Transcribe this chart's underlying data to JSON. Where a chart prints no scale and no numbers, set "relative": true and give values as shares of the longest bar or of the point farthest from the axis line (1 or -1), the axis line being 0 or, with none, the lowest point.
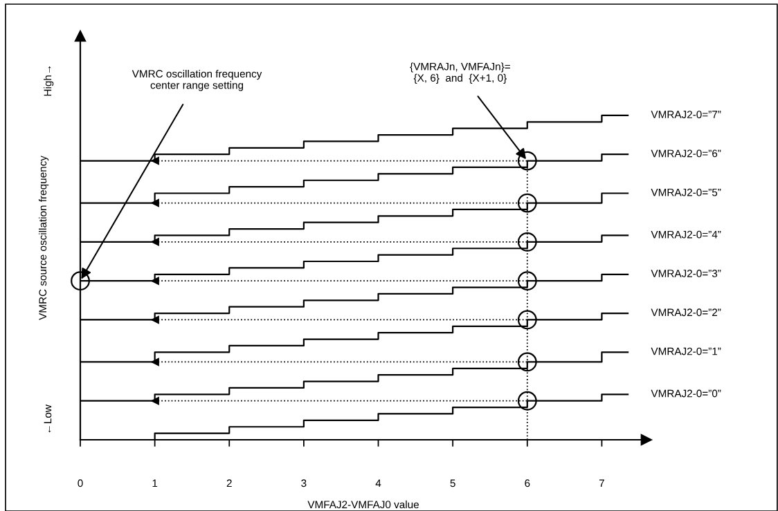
{
  "chart_data": {
    "type": "step",
    "relative": true,
    "xlabel": "VMFAJ2-VMFAJ0 value",
    "ylabel": "VMRC source oscillation frequency",
    "tick_labels": "x",
    "xlim": [
      0,
      7.6
    ],
    "xticks": [
      0,
      1,
      2,
      3,
      4,
      5,
      6,
      7
    ],
    "annotations": [
      "High→",
      "←Low",
      {
        "text": "VMRC oscillation frequency\ncenter range setting",
        "x": 0,
        "y": 0.49
      },
      {
        "text": "{VMRAJn, VMFAJn}=\n{X, 6}  and  {X+1, 0}",
        "x": 6,
        "y": 0.86
      }
    ],
    "series": [
      {
        "name": "VMRAJ2-0=”0”",
        "color": "#000000",
        "x": [
          0,
          1,
          2,
          3,
          4,
          5,
          6,
          7,
          7.35
        ],
        "values": [
          0,
          0.02,
          0.04,
          0.06,
          0.08,
          0.1,
          0.12,
          0.14,
          0.14
        ]
      },
      {
        "name": "VMRAJ2-0=”1”",
        "color": "#000000",
        "x": [
          0,
          1,
          2,
          3,
          4,
          5,
          6,
          7,
          7.35
        ],
        "values": [
          0.12,
          0.14,
          0.16,
          0.18,
          0.2,
          0.22,
          0.24,
          0.27,
          0.27
        ]
      },
      {
        "name": "VMRAJ2-0=”2”",
        "color": "#000000",
        "x": [
          0,
          1,
          2,
          3,
          4,
          5,
          6,
          7,
          7.35
        ],
        "values": [
          0.24,
          0.27,
          0.29,
          0.31,
          0.33,
          0.35,
          0.37,
          0.39,
          0.39
        ]
      },
      {
        "name": "VMRAJ2-0=”3”",
        "color": "#000000",
        "x": [
          0,
          1,
          2,
          3,
          4,
          5,
          6,
          7,
          7.35
        ],
        "values": [
          0.37,
          0.39,
          0.41,
          0.43,
          0.45,
          0.47,
          0.49,
          0.51,
          0.51
        ]
      },
      {
        "name": "VMRAJ2-0=”4”",
        "color": "#000000",
        "x": [
          0,
          1,
          2,
          3,
          4,
          5,
          6,
          7,
          7.35
        ],
        "values": [
          0.49,
          0.51,
          0.53,
          0.55,
          0.57,
          0.59,
          0.61,
          0.63,
          0.63
        ]
      },
      {
        "name": "VMRAJ2-0=”5”",
        "color": "#000000",
        "x": [
          0,
          1,
          2,
          3,
          4,
          5,
          6,
          7,
          7.35
        ],
        "values": [
          0.61,
          0.63,
          0.65,
          0.67,
          0.69,
          0.71,
          0.73,
          0.76,
          0.76
        ]
      },
      {
        "name": "VMRAJ2-0=”6”",
        "color": "#000000",
        "x": [
          0,
          1,
          2,
          3,
          4,
          5,
          6,
          7,
          7.35
        ],
        "values": [
          0.73,
          0.76,
          0.78,
          0.8,
          0.82,
          0.84,
          0.86,
          0.88,
          0.88
        ]
      },
      {
        "name": "VMRAJ2-0=”7”",
        "color": "#000000",
        "x": [
          0,
          1,
          2,
          3,
          4,
          5,
          6,
          7,
          7.35
        ],
        "values": [
          0.86,
          0.88,
          0.9,
          0.92,
          0.94,
          0.96,
          0.98,
          1,
          1
        ]
      },
      {
        "type": "line",
        "color": "#000000",
        "line_style": "dotted",
        "marker": "triangle",
        "x": [
          1,
          6
        ],
        "values": [
          0.12,
          0.12
        ]
      },
      {
        "type": "line",
        "color": "#000000",
        "line_style": "dotted",
        "marker": "triangle",
        "x": [
          1,
          6
        ],
        "values": [
          0.24,
          0.24
        ]
      },
      {
        "type": "line",
        "color": "#000000",
        "line_style": "dotted",
        "marker": "triangle",
        "x": [
          1,
          6
        ],
        "values": [
          0.37,
          0.37
        ]
      },
      {
        "type": "line",
        "color": "#000000",
        "line_style": "dotted",
        "marker": "triangle",
        "x": [
          1,
          6
        ],
        "values": [
          0.49,
          0.49
        ]
      },
      {
        "type": "line",
        "color": "#000000",
        "line_style": "dotted",
        "marker": "triangle",
        "x": [
          1,
          6
        ],
        "values": [
          0.61,
          0.61
        ]
      },
      {
        "type": "line",
        "color": "#000000",
        "line_style": "dotted",
        "marker": "triangle",
        "x": [
          1,
          6
        ],
        "values": [
          0.73,
          0.73
        ]
      },
      {
        "type": "line",
        "color": "#000000",
        "line_style": "dotted",
        "marker": "triangle",
        "x": [
          1,
          6
        ],
        "values": [
          0.86,
          0.86
        ]
      },
      {
        "type": "line",
        "color": "#000000",
        "line_style": "dotted",
        "x": [
          6,
          6
        ],
        "values": [
          0,
          0.86
        ]
      },
      {
        "type": "scatter",
        "color": "#000000",
        "marker": "circle",
        "x": [
          0,
          6,
          6,
          6,
          6,
          6,
          6,
          6
        ],
        "values": [
          0.49,
          0.12,
          0.24,
          0.37,
          0.49,
          0.61,
          0.73,
          0.86
        ]
      }
    ]
  }
}
